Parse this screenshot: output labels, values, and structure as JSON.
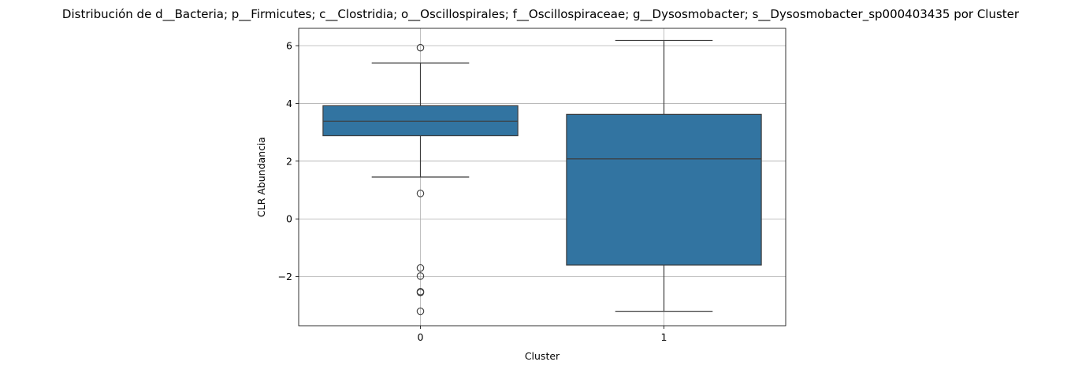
{
  "chart_data": {
    "type": "box",
    "title": "Distribución de d__Bacteria; p__Firmicutes; c__Clostridia; o__Oscillospirales; f__Oscillospiraceae; g__Dysosmobacter; s__Dysosmobacter_sp000403435 por Cluster",
    "xlabel": "Cluster",
    "ylabel": "CLR Abundancia",
    "categories": [
      "0",
      "1"
    ],
    "ylim": [
      -3.7,
      6.6
    ],
    "yticks": [
      -2,
      0,
      2,
      4,
      6
    ],
    "ytick_labels": [
      "−2",
      "0",
      "2",
      "4",
      "6"
    ],
    "grid": true,
    "color": "#3274a1",
    "edge_color": "#3d3d3d",
    "boxes": [
      {
        "category": "0",
        "whisker_low": 1.45,
        "q1": 2.88,
        "median": 3.38,
        "q3": 3.92,
        "whisker_high": 5.4,
        "outliers": [
          5.93,
          0.88,
          -1.7,
          -1.98,
          -2.52,
          -2.55,
          -3.2
        ]
      },
      {
        "category": "1",
        "whisker_low": -3.2,
        "q1": -1.6,
        "median": 2.08,
        "q3": 3.62,
        "whisker_high": 6.18,
        "outliers": []
      }
    ]
  }
}
